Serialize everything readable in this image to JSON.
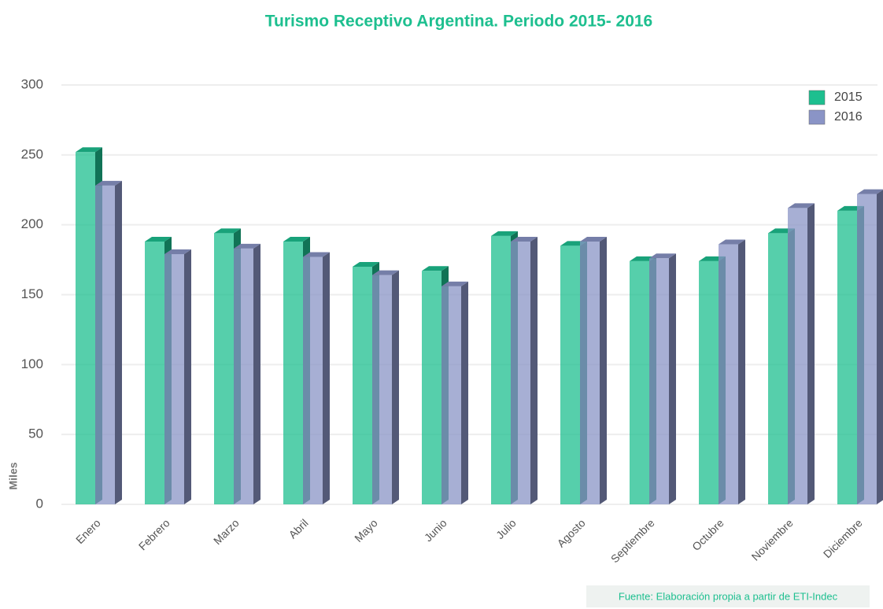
{
  "chart_data": {
    "type": "bar3d",
    "title": "Turismo Receptivo Argentina. Periodo 2015- 2016",
    "y_label": "Miles",
    "source": "Fuente: Elaboración propia a partir de ETI-Indec",
    "categories": [
      "Enero",
      "Febrero",
      "Marzo",
      "Abril",
      "Mayo",
      "Junio",
      "Julio",
      "Agosto",
      "Septiembre",
      "Octubre",
      "Noviembre",
      "Diciembre"
    ],
    "series": [
      {
        "name": "2015",
        "color": "#1dbf8f",
        "values": [
          252,
          188,
          194,
          188,
          170,
          167,
          192,
          185,
          174,
          174,
          194,
          210
        ]
      },
      {
        "name": "2016",
        "color": "#8a94c6",
        "values": [
          228,
          179,
          183,
          177,
          164,
          156,
          188,
          188,
          176,
          186,
          212,
          222
        ]
      }
    ],
    "ylim": [
      0,
      300
    ],
    "yticks": [
      0,
      50,
      100,
      150,
      200,
      250,
      300
    ],
    "grid": true,
    "legend": "top-right"
  }
}
